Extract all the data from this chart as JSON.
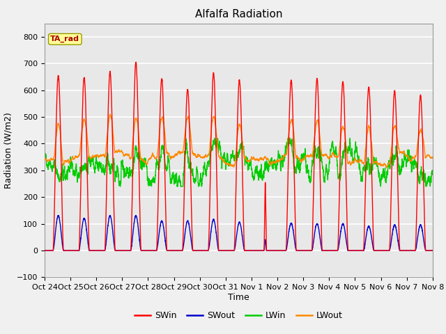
{
  "title": "Alfalfa Radiation",
  "xlabel": "Time",
  "ylabel": "Radiation (W/m2)",
  "ylim": [
    -100,
    850
  ],
  "yticks": [
    -100,
    0,
    100,
    200,
    300,
    400,
    500,
    600,
    700,
    800
  ],
  "xtick_labels": [
    "Oct 24",
    "Oct 25",
    "Oct 26",
    "Oct 27",
    "Oct 28",
    "Oct 29",
    "Oct 30",
    "Oct 31",
    "Nov 1",
    "Nov 2",
    "Nov 3",
    "Nov 4",
    "Nov 5",
    "Nov 6",
    "Nov 7",
    "Nov 8"
  ],
  "fig_bg_color": "#f0f0f0",
  "plot_bg_color": "#e8e8e8",
  "grid_color": "#ffffff",
  "series": {
    "SWin": {
      "color": "#ff0000",
      "linewidth": 1.0
    },
    "SWout": {
      "color": "#0000cc",
      "linewidth": 1.0
    },
    "LWin": {
      "color": "#00cc00",
      "linewidth": 1.0
    },
    "LWout": {
      "color": "#ff8800",
      "linewidth": 1.0
    }
  },
  "annotation": {
    "text": "TA_rad",
    "color": "#aa0000",
    "bg_color": "#ffff99",
    "edge_color": "#999900",
    "fontsize": 8
  },
  "n_days": 15,
  "n_points_per_day": 288,
  "SWin_peaks": [
    655,
    648,
    670,
    703,
    643,
    603,
    665,
    638,
    255,
    637,
    643,
    632,
    612,
    597,
    580
  ],
  "SWout_peaks": [
    130,
    120,
    130,
    130,
    110,
    110,
    115,
    105,
    40,
    102,
    100,
    100,
    90,
    95,
    95
  ],
  "LWin_base": 320,
  "LWout_base": 345
}
